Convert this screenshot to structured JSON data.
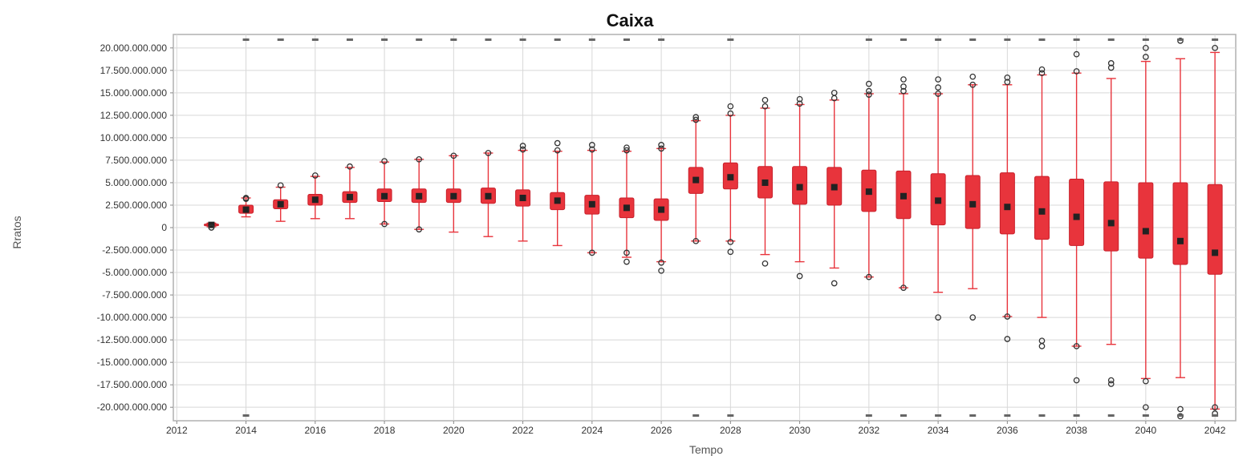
{
  "chart_data": {
    "type": "boxplot",
    "title": "Caixa",
    "xlabel": "Tempo",
    "ylabel": "Rratos",
    "grid": true,
    "ylim": [
      -21500000000,
      21500000000
    ],
    "y_ticks": [
      20000000000,
      17500000000,
      15000000000,
      12500000000,
      10000000000,
      7500000000,
      5000000000,
      2500000000,
      0,
      -2500000000,
      -5000000000,
      -7500000000,
      -10000000000,
      -12500000000,
      -15000000000,
      -17500000000,
      -20000000000
    ],
    "y_tick_labels": [
      "20.000.000.000",
      "17.500.000.000",
      "15.000.000.000",
      "12.500.000.000",
      "10.000.000.000",
      "7.500.000.000",
      "5.000.000.000",
      "2.500.000.000",
      "0",
      "-2.500.000.000",
      "-5.000.000.000",
      "-7.500.000.000",
      "-10.000.000.000",
      "-12.500.000.000",
      "-15.000.000.000",
      "-17.500.000.000",
      "-20.000.000.000"
    ],
    "x_ticks": [
      2012,
      2014,
      2016,
      2018,
      2020,
      2022,
      2024,
      2026,
      2028,
      2030,
      2032,
      2034,
      2036,
      2038,
      2040,
      2042
    ],
    "x_tick_labels": [
      "2012",
      "2014",
      "2016",
      "2018",
      "2020",
      "2022",
      "2024",
      "2026",
      "2028",
      "2030",
      "2032",
      "2034",
      "2036",
      "2038",
      "2040",
      "2042"
    ],
    "series": [
      {
        "x": 2013,
        "q1": 200000000,
        "median": 300000000,
        "q3": 400000000,
        "whisker_low": 100000000,
        "whisker_high": 500000000
      },
      {
        "x": 2014,
        "q1": 1600000000,
        "median": 2000000000,
        "q3": 2500000000,
        "whisker_low": 1200000000,
        "whisker_high": 3300000000
      },
      {
        "x": 2015,
        "q1": 2100000000,
        "median": 2600000000,
        "q3": 3100000000,
        "whisker_low": 700000000,
        "whisker_high": 4500000000
      },
      {
        "x": 2016,
        "q1": 2500000000,
        "median": 3100000000,
        "q3": 3700000000,
        "whisker_low": 1000000000,
        "whisker_high": 5700000000
      },
      {
        "x": 2017,
        "q1": 2800000000,
        "median": 3400000000,
        "q3": 4000000000,
        "whisker_low": 1000000000,
        "whisker_high": 6700000000
      },
      {
        "x": 2018,
        "q1": 2900000000,
        "median": 3500000000,
        "q3": 4300000000,
        "whisker_low": 400000000,
        "whisker_high": 7300000000
      },
      {
        "x": 2019,
        "q1": 2800000000,
        "median": 3500000000,
        "q3": 4300000000,
        "whisker_low": -200000000,
        "whisker_high": 7600000000
      },
      {
        "x": 2020,
        "q1": 2800000000,
        "median": 3500000000,
        "q3": 4300000000,
        "whisker_low": -500000000,
        "whisker_high": 8000000000
      },
      {
        "x": 2021,
        "q1": 2700000000,
        "median": 3500000000,
        "q3": 4400000000,
        "whisker_low": -1000000000,
        "whisker_high": 8300000000
      },
      {
        "x": 2022,
        "q1": 2400000000,
        "median": 3300000000,
        "q3": 4200000000,
        "whisker_low": -1500000000,
        "whisker_high": 8600000000
      },
      {
        "x": 2023,
        "q1": 2000000000,
        "median": 3000000000,
        "q3": 3900000000,
        "whisker_low": -2000000000,
        "whisker_high": 8500000000
      },
      {
        "x": 2024,
        "q1": 1500000000,
        "median": 2600000000,
        "q3": 3600000000,
        "whisker_low": -2800000000,
        "whisker_high": 8600000000
      },
      {
        "x": 2025,
        "q1": 1100000000,
        "median": 2200000000,
        "q3": 3300000000,
        "whisker_low": -3300000000,
        "whisker_high": 8500000000
      },
      {
        "x": 2026,
        "q1": 800000000,
        "median": 2000000000,
        "q3": 3200000000,
        "whisker_low": -3800000000,
        "whisker_high": 8800000000
      },
      {
        "x": 2027,
        "q1": 3800000000,
        "median": 5300000000,
        "q3": 6700000000,
        "whisker_low": -1500000000,
        "whisker_high": 11900000000
      },
      {
        "x": 2028,
        "q1": 4300000000,
        "median": 5600000000,
        "q3": 7200000000,
        "whisker_low": -1500000000,
        "whisker_high": 12500000000
      },
      {
        "x": 2029,
        "q1": 3300000000,
        "median": 5000000000,
        "q3": 6800000000,
        "whisker_low": -3000000000,
        "whisker_high": 13300000000
      },
      {
        "x": 2030,
        "q1": 2600000000,
        "median": 4500000000,
        "q3": 6800000000,
        "whisker_low": -3800000000,
        "whisker_high": 13700000000
      },
      {
        "x": 2031,
        "q1": 2500000000,
        "median": 4500000000,
        "q3": 6700000000,
        "whisker_low": -4500000000,
        "whisker_high": 14200000000
      },
      {
        "x": 2032,
        "q1": 1800000000,
        "median": 4000000000,
        "q3": 6400000000,
        "whisker_low": -5500000000,
        "whisker_high": 14900000000
      },
      {
        "x": 2033,
        "q1": 1000000000,
        "median": 3500000000,
        "q3": 6300000000,
        "whisker_low": -6700000000,
        "whisker_high": 14900000000
      },
      {
        "x": 2034,
        "q1": 300000000,
        "median": 3000000000,
        "q3": 6000000000,
        "whisker_low": -7200000000,
        "whisker_high": 14900000000
      },
      {
        "x": 2035,
        "q1": -100000000,
        "median": 2600000000,
        "q3": 5800000000,
        "whisker_low": -6800000000,
        "whisker_high": 15900000000
      },
      {
        "x": 2036,
        "q1": -700000000,
        "median": 2300000000,
        "q3": 6100000000,
        "whisker_low": -9900000000,
        "whisker_high": 15900000000
      },
      {
        "x": 2037,
        "q1": -1300000000,
        "median": 1800000000,
        "q3": 5700000000,
        "whisker_low": -10000000000,
        "whisker_high": 17000000000
      },
      {
        "x": 2038,
        "q1": -2000000000,
        "median": 1200000000,
        "q3": 5400000000,
        "whisker_low": -13200000000,
        "whisker_high": 17200000000
      },
      {
        "x": 2039,
        "q1": -2600000000,
        "median": 500000000,
        "q3": 5100000000,
        "whisker_low": -13000000000,
        "whisker_high": 16600000000
      },
      {
        "x": 2040,
        "q1": -3400000000,
        "median": -400000000,
        "q3": 5000000000,
        "whisker_low": -16800000000,
        "whisker_high": 18500000000
      },
      {
        "x": 2041,
        "q1": -4100000000,
        "median": -1500000000,
        "q3": 5000000000,
        "whisker_low": -16700000000,
        "whisker_high": 18800000000
      },
      {
        "x": 2042,
        "q1": -5200000000,
        "median": -2800000000,
        "q3": 4800000000,
        "whisker_low": -20200000000,
        "whisker_high": 19500000000
      }
    ],
    "outliers": [
      [
        2013,
        0
      ],
      [
        2014,
        3200000000
      ],
      [
        2014,
        3300000000
      ],
      [
        2015,
        4700000000
      ],
      [
        2016,
        5800000000
      ],
      [
        2017,
        6800000000
      ],
      [
        2018,
        7400000000
      ],
      [
        2018,
        400000000
      ],
      [
        2019,
        7600000000
      ],
      [
        2019,
        -200000000
      ],
      [
        2020,
        8000000000
      ],
      [
        2021,
        8300000000
      ],
      [
        2022,
        8700000000
      ],
      [
        2022,
        9100000000
      ],
      [
        2023,
        8600000000
      ],
      [
        2023,
        9400000000
      ],
      [
        2024,
        8700000000
      ],
      [
        2024,
        9200000000
      ],
      [
        2024,
        -2800000000
      ],
      [
        2025,
        8600000000
      ],
      [
        2025,
        8900000000
      ],
      [
        2025,
        -2800000000
      ],
      [
        2025,
        -3800000000
      ],
      [
        2026,
        8800000000
      ],
      [
        2026,
        9200000000
      ],
      [
        2026,
        -3900000000
      ],
      [
        2026,
        -4800000000
      ],
      [
        2027,
        12000000000
      ],
      [
        2027,
        12300000000
      ],
      [
        2027,
        -1500000000
      ],
      [
        2028,
        12700000000
      ],
      [
        2028,
        13500000000
      ],
      [
        2028,
        -1600000000
      ],
      [
        2028,
        -2700000000
      ],
      [
        2029,
        13500000000
      ],
      [
        2029,
        14200000000
      ],
      [
        2029,
        -4000000000
      ],
      [
        2030,
        13800000000
      ],
      [
        2030,
        14300000000
      ],
      [
        2030,
        -5400000000
      ],
      [
        2031,
        14400000000
      ],
      [
        2031,
        15000000000
      ],
      [
        2031,
        -6200000000
      ],
      [
        2032,
        14800000000
      ],
      [
        2032,
        15200000000
      ],
      [
        2032,
        16000000000
      ],
      [
        2032,
        -5500000000
      ],
      [
        2033,
        15200000000
      ],
      [
        2033,
        15700000000
      ],
      [
        2033,
        16500000000
      ],
      [
        2033,
        -6700000000
      ],
      [
        2034,
        14900000000
      ],
      [
        2034,
        15600000000
      ],
      [
        2034,
        16500000000
      ],
      [
        2034,
        -10000000000
      ],
      [
        2035,
        15900000000
      ],
      [
        2035,
        16800000000
      ],
      [
        2035,
        -10000000000
      ],
      [
        2036,
        16200000000
      ],
      [
        2036,
        16700000000
      ],
      [
        2036,
        -9900000000
      ],
      [
        2036,
        -12400000000
      ],
      [
        2037,
        17200000000
      ],
      [
        2037,
        17600000000
      ],
      [
        2037,
        -12600000000
      ],
      [
        2037,
        -13200000000
      ],
      [
        2038,
        17400000000
      ],
      [
        2038,
        19300000000
      ],
      [
        2038,
        -13200000000
      ],
      [
        2038,
        -17000000000
      ],
      [
        2039,
        17800000000
      ],
      [
        2039,
        18300000000
      ],
      [
        2039,
        -17000000000
      ],
      [
        2039,
        -17400000000
      ],
      [
        2040,
        19000000000
      ],
      [
        2040,
        20000000000
      ],
      [
        2040,
        -17100000000
      ],
      [
        2040,
        -20000000000
      ],
      [
        2041,
        20800000000
      ],
      [
        2041,
        -20200000000
      ],
      [
        2041,
        -21000000000
      ],
      [
        2042,
        20000000000
      ],
      [
        2042,
        -20000000000
      ],
      [
        2042,
        -20700000000
      ]
    ],
    "edge_markers_top": [
      2014,
      2015,
      2016,
      2017,
      2018,
      2019,
      2020,
      2021,
      2022,
      2023,
      2024,
      2025,
      2026,
      2028,
      2032,
      2033,
      2034,
      2035,
      2036,
      2037,
      2038,
      2039,
      2040,
      2041,
      2042
    ],
    "edge_markers_bottom": [
      2014,
      2027,
      2028,
      2032,
      2033,
      2034,
      2035,
      2036,
      2037,
      2038,
      2039,
      2040,
      2041,
      2042
    ],
    "colors": {
      "box_fill": "#e8343c",
      "box_edge": "#c81f2a",
      "whisker": "#e8343c",
      "median": "#222222",
      "outlier": "#333333",
      "grid": "#d8d8d8",
      "frame": "#b0b0b0"
    }
  }
}
